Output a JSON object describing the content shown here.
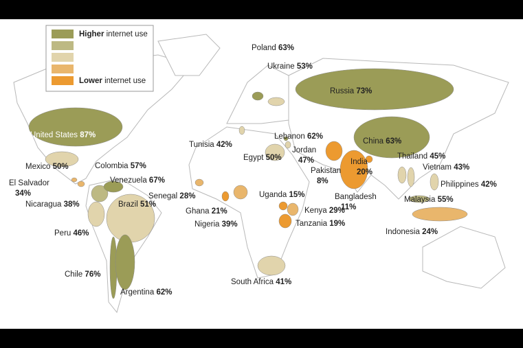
{
  "legend": {
    "high": {
      "bold": "Higher",
      "text": "internet use"
    },
    "low": {
      "bold": "Lower",
      "text": "internet use"
    },
    "colors": [
      "#9b9c57",
      "#bdb983",
      "#e1d4ac",
      "#e9b66c",
      "#ec9a30"
    ]
  },
  "countries": [
    {
      "name": "United States",
      "value": 87,
      "value_label": "87%",
      "color": "#9b9c57"
    },
    {
      "name": "Mexico",
      "value": 50,
      "value_label": "50%",
      "color": "#e1d4ac"
    },
    {
      "name": "El Salvador",
      "value": 34,
      "value_label": "34%",
      "color": "#e9b66c"
    },
    {
      "name": "Nicaragua",
      "value": 38,
      "value_label": "38%",
      "color": "#e9b66c"
    },
    {
      "name": "Colombia",
      "value": 57,
      "value_label": "57%",
      "color": "#bdb983"
    },
    {
      "name": "Venezuela",
      "value": 67,
      "value_label": "67%",
      "color": "#9b9c57"
    },
    {
      "name": "Peru",
      "value": 46,
      "value_label": "46%",
      "color": "#e1d4ac"
    },
    {
      "name": "Brazil",
      "value": 51,
      "value_label": "51%",
      "color": "#e1d4ac"
    },
    {
      "name": "Chile",
      "value": 76,
      "value_label": "76%",
      "color": "#9b9c57"
    },
    {
      "name": "Argentina",
      "value": 62,
      "value_label": "62%",
      "color": "#9b9c57"
    },
    {
      "name": "Poland",
      "value": 63,
      "value_label": "63%",
      "color": "#9b9c57"
    },
    {
      "name": "Ukraine",
      "value": 53,
      "value_label": "53%",
      "color": "#e1d4ac"
    },
    {
      "name": "Russia",
      "value": 73,
      "value_label": "73%",
      "color": "#9b9c57"
    },
    {
      "name": "Tunisia",
      "value": 42,
      "value_label": "42%",
      "color": "#e1d4ac"
    },
    {
      "name": "Lebanon",
      "value": 62,
      "value_label": "62%",
      "color": "#9b9c57"
    },
    {
      "name": "Jordan",
      "value": 47,
      "value_label": "47%",
      "color": "#e1d4ac"
    },
    {
      "name": "Egypt",
      "value": 50,
      "value_label": "50%",
      "color": "#e1d4ac"
    },
    {
      "name": "Pakistan",
      "value": 8,
      "value_label": "8%",
      "color": "#ec9a30"
    },
    {
      "name": "India",
      "value": 20,
      "value_label": "20%",
      "color": "#ec9a30"
    },
    {
      "name": "China",
      "value": 63,
      "value_label": "63%",
      "color": "#9b9c57"
    },
    {
      "name": "Thailand",
      "value": 45,
      "value_label": "45%",
      "color": "#e1d4ac"
    },
    {
      "name": "Vietnam",
      "value": 43,
      "value_label": "43%",
      "color": "#e1d4ac"
    },
    {
      "name": "Philippines",
      "value": 42,
      "value_label": "42%",
      "color": "#e1d4ac"
    },
    {
      "name": "Malaysia",
      "value": 55,
      "value_label": "55%",
      "color": "#bdb983"
    },
    {
      "name": "Indonesia",
      "value": 24,
      "value_label": "24%",
      "color": "#e9b66c"
    },
    {
      "name": "Bangladesh",
      "value": 11,
      "value_label": "11%",
      "color": "#ec9a30"
    },
    {
      "name": "Senegal",
      "value": 28,
      "value_label": "28%",
      "color": "#e9b66c"
    },
    {
      "name": "Ghana",
      "value": 21,
      "value_label": "21%",
      "color": "#ec9a30"
    },
    {
      "name": "Nigeria",
      "value": 39,
      "value_label": "39%",
      "color": "#e9b66c"
    },
    {
      "name": "Uganda",
      "value": 15,
      "value_label": "15%",
      "color": "#ec9a30"
    },
    {
      "name": "Kenya",
      "value": 29,
      "value_label": "29%",
      "color": "#e9b66c"
    },
    {
      "name": "Tanzania",
      "value": 19,
      "value_label": "19%",
      "color": "#ec9a30"
    },
    {
      "name": "South Africa",
      "value": 41,
      "value_label": "41%",
      "color": "#e1d4ac"
    }
  ]
}
